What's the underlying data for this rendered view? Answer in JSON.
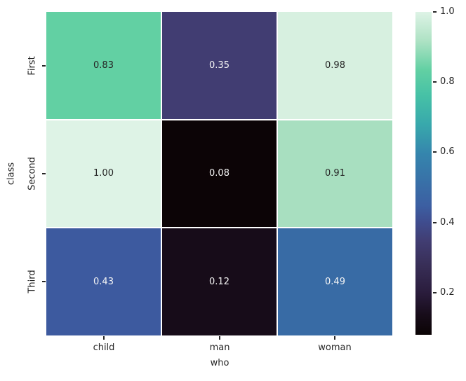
{
  "figure": {
    "background": "#ffffff",
    "text_color": "#262626",
    "tick_color": "#262626",
    "cell_gap_color": "#ffffff"
  },
  "chart_data": {
    "type": "heatmap",
    "title": "",
    "xlabel": "who",
    "ylabel": "class",
    "x_categories": [
      "child",
      "man",
      "woman"
    ],
    "y_categories": [
      "First",
      "Second",
      "Third"
    ],
    "values": [
      [
        0.83,
        0.35,
        0.98
      ],
      [
        1.0,
        0.08,
        0.91
      ],
      [
        0.43,
        0.12,
        0.49
      ]
    ],
    "annotations": [
      [
        "0.83",
        "0.35",
        "0.98"
      ],
      [
        "1.00",
        "0.08",
        "0.91"
      ],
      [
        "0.43",
        "0.12",
        "0.49"
      ]
    ],
    "cell_colors": [
      [
        "#62d0a3",
        "#413d72",
        "#d7f0e0"
      ],
      [
        "#def3e6",
        "#0c0406",
        "#a8dfc0"
      ],
      [
        "#3d5a9f",
        "#170c19",
        "#386ba5"
      ]
    ],
    "cell_text_colors": [
      [
        "#262626",
        "#f5f5f5",
        "#262626"
      ],
      [
        "#262626",
        "#f5f5f5",
        "#262626"
      ],
      [
        "#f5f5f5",
        "#f5f5f5",
        "#f5f5f5"
      ]
    ],
    "colormap": "mako",
    "grid": false,
    "legend_position": "right-colorbar",
    "colorbar": {
      "vmin": 0.08,
      "vmax": 1.0,
      "ticks": [
        "1.0",
        "0.8",
        "0.6",
        "0.4",
        "0.2"
      ],
      "tick_values": [
        1.0,
        0.8,
        0.6,
        0.4,
        0.2
      ],
      "gradient_stops": [
        {
          "pos": 0,
          "color": "#def3e6"
        },
        {
          "pos": 9,
          "color": "#aee2c4"
        },
        {
          "pos": 18,
          "color": "#62d0a3"
        },
        {
          "pos": 26,
          "color": "#46c1a6"
        },
        {
          "pos": 35,
          "color": "#38a8ac"
        },
        {
          "pos": 44,
          "color": "#3585ad"
        },
        {
          "pos": 52,
          "color": "#3872a8"
        },
        {
          "pos": 60,
          "color": "#3c5fa2"
        },
        {
          "pos": 65,
          "color": "#3f4d8f"
        },
        {
          "pos": 71,
          "color": "#413d72"
        },
        {
          "pos": 79,
          "color": "#372d55"
        },
        {
          "pos": 87,
          "color": "#2a1c3c"
        },
        {
          "pos": 94,
          "color": "#170c19"
        },
        {
          "pos": 100,
          "color": "#0b0405"
        }
      ]
    }
  }
}
